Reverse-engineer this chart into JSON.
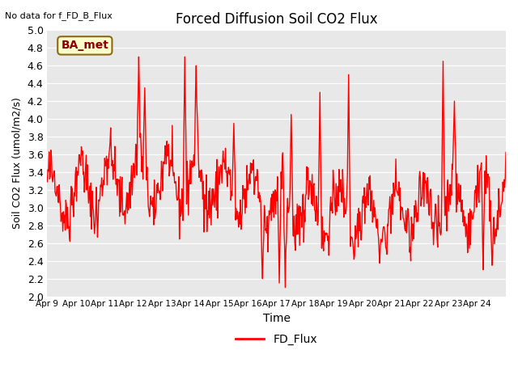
{
  "title": "Forced Diffusion Soil CO2 Flux",
  "xlabel": "Time",
  "ylabel_text": "Soil CO2 Flux (umol/m2/s)",
  "no_data_text": "No data for f_FD_B_Flux",
  "legend_label": "FD_Flux",
  "site_label": "BA_met",
  "ylim": [
    2.0,
    5.0
  ],
  "yticks": [
    2.0,
    2.2,
    2.4,
    2.6,
    2.8,
    3.0,
    3.2,
    3.4,
    3.6,
    3.8,
    4.0,
    4.2,
    4.4,
    4.6,
    4.8,
    5.0
  ],
  "line_color": "#ff0000",
  "line_width": 1.0,
  "bg_color": "#e8e8e8",
  "grid_color": "#ffffff",
  "xtick_labels": [
    "Apr 9",
    "Apr 10",
    "Apr 11",
    "Apr 12",
    "Apr 13",
    "Apr 14",
    "Apr 15",
    "Apr 16",
    "Apr 17",
    "Apr 18",
    "Apr 19",
    "Apr 20",
    "Apr 21",
    "Apr 22",
    "Apr 23",
    "Apr 24"
  ],
  "n_days": 16,
  "pts_per_day": 48
}
